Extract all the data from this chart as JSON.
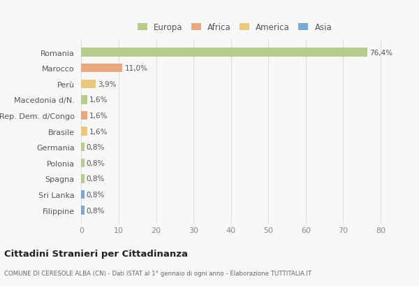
{
  "countries": [
    "Romania",
    "Marocco",
    "Perù",
    "Macedonia d/N.",
    "Rep. Dem. d/Congo",
    "Brasile",
    "Germania",
    "Polonia",
    "Spagna",
    "Sri Lanka",
    "Filippine"
  ],
  "values": [
    76.4,
    11.0,
    3.9,
    1.6,
    1.6,
    1.6,
    0.8,
    0.8,
    0.8,
    0.8,
    0.8
  ],
  "labels": [
    "76,4%",
    "11,0%",
    "3,9%",
    "1,6%",
    "1,6%",
    "1,6%",
    "0,8%",
    "0,8%",
    "0,8%",
    "0,8%",
    "0,8%"
  ],
  "colors": [
    "#b5cc8e",
    "#e8a97e",
    "#e8c97e",
    "#b5cc8e",
    "#e8a97e",
    "#e8c97e",
    "#b5cc8e",
    "#b5cc8e",
    "#b5cc8e",
    "#7aaacf",
    "#7aaacf"
  ],
  "legend_labels": [
    "Europa",
    "Africa",
    "America",
    "Asia"
  ],
  "legend_colors": [
    "#b5cc8e",
    "#e8a97e",
    "#e8c97e",
    "#7aaacf"
  ],
  "title": "Cittadini Stranieri per Cittadinanza",
  "subtitle": "COMUNE DI CERESOLE ALBA (CN) - Dati ISTAT al 1° gennaio di ogni anno - Elaborazione TUTTITALIA.IT",
  "xlim_min": -1,
  "xlim_max": 83,
  "xticks": [
    0,
    10,
    20,
    30,
    40,
    50,
    60,
    70,
    80
  ],
  "bg_color": "#f8f8f8",
  "grid_color": "#dddddd"
}
